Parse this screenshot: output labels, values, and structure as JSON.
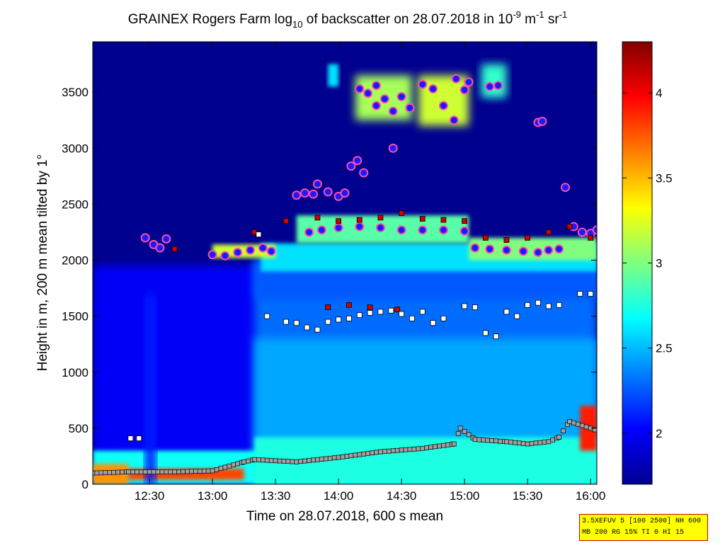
{
  "chart_data": {
    "type": "heatmap",
    "title": {
      "prefix": "GRAINEX Rogers Farm log",
      "log_sub": "10",
      "middle": " of backscatter on 28.07.2018 in 10",
      "exp1": "-9",
      "unit_m": " m",
      "exp2": "-1",
      "unit_sr": " sr",
      "exp3": "-1"
    },
    "xlabel": "Time on 28.07.2018, 600 s mean",
    "ylabel": "Height in m, 200 m mean tilted by 1°",
    "x_ticks": [
      "12:30",
      "13:00",
      "13:30",
      "14:00",
      "14:30",
      "15:00",
      "15:30",
      "16:00"
    ],
    "y_ticks": [
      "0",
      "500",
      "1000",
      "1500",
      "2000",
      "2500",
      "3000",
      "3500"
    ],
    "x_range": [
      "12:03",
      "16:03"
    ],
    "y_range": [
      0,
      3950
    ],
    "colorbar_ticks": [
      "2",
      "2.5",
      "3",
      "3.5",
      "4"
    ],
    "colorbar_range": [
      1.7,
      4.3
    ],
    "colormap": [
      "#00008f",
      "#0000ff",
      "#00ffff",
      "#ffff00",
      "#ff0000",
      "#800000"
    ],
    "info_box": [
      "3.5XEFUV 5 [100 2500] NH 600",
      "MB 200 RG 15% TI 0 HI 15"
    ],
    "cloud_layers": [
      {
        "x": [
          "12:28",
          "12:32",
          "12:35",
          "12:38"
        ],
        "y": [
          2200,
          2140,
          2110,
          2190
        ]
      },
      {
        "x": [
          "13:00",
          "13:06",
          "13:12",
          "13:18",
          "13:24",
          "13:28"
        ],
        "y": [
          2050,
          2040,
          2070,
          2090,
          2110,
          2080
        ]
      },
      {
        "x": [
          "13:40",
          "13:44",
          "13:48"
        ],
        "y": [
          2580,
          2600,
          2590
        ]
      },
      {
        "x": [
          "13:50",
          "13:55",
          "14:00",
          "14:03"
        ],
        "y": [
          2680,
          2610,
          2570,
          2600
        ]
      },
      {
        "x": [
          "14:06",
          "14:09",
          "14:12"
        ],
        "y": [
          2840,
          2890,
          2780
        ]
      },
      {
        "x": [
          "14:10",
          "14:14",
          "14:18"
        ],
        "y": [
          3530,
          3490,
          3560
        ]
      },
      {
        "x": [
          "14:18",
          "14:22",
          "14:26"
        ],
        "y": [
          3380,
          3440,
          3330
        ]
      },
      {
        "x": [
          "14:26",
          "14:30",
          "14:34"
        ],
        "y": [
          3000,
          3460,
          3360
        ]
      },
      {
        "x": [
          "14:40",
          "14:45",
          "14:50",
          "14:55"
        ],
        "y": [
          3570,
          3530,
          3380,
          3250
        ]
      },
      {
        "x": [
          "14:56",
          "15:00",
          "15:02"
        ],
        "y": [
          3620,
          3520,
          3590
        ]
      },
      {
        "x": [
          "15:12",
          "15:16"
        ],
        "y": [
          3550,
          3560
        ]
      },
      {
        "x": [
          "15:35",
          "15:37"
        ],
        "y": [
          3230,
          3240
        ]
      },
      {
        "x": [
          "13:46",
          "13:52",
          "14:00",
          "14:10",
          "14:20",
          "14:30",
          "14:40",
          "14:50",
          "15:00"
        ],
        "y": [
          2250,
          2270,
          2290,
          2300,
          2290,
          2270,
          2270,
          2270,
          2260
        ]
      },
      {
        "x": [
          "15:05",
          "15:12",
          "15:20",
          "15:28",
          "15:35",
          "15:40",
          "15:45"
        ],
        "y": [
          2110,
          2100,
          2090,
          2080,
          2070,
          2090,
          2100
        ]
      },
      {
        "x": [
          "15:48",
          "15:52",
          "15:56",
          "16:00",
          "16:03"
        ],
        "y": [
          2650,
          2300,
          2250,
          2240,
          2270
        ]
      }
    ],
    "red_markers": {
      "x": [
        "12:42",
        "13:20",
        "13:35",
        "13:50",
        "14:00",
        "14:10",
        "14:20",
        "14:30",
        "14:40",
        "14:50",
        "15:00",
        "15:10",
        "15:20",
        "15:30",
        "15:40",
        "15:50",
        "16:00",
        "13:55",
        "14:05",
        "14:15",
        "14:28"
      ],
      "y": [
        2100,
        2250,
        2350,
        2380,
        2350,
        2360,
        2380,
        2420,
        2370,
        2360,
        2350,
        2200,
        2180,
        2200,
        2250,
        2300,
        2200,
        1580,
        1600,
        1580,
        1560
      ]
    },
    "white_markers": {
      "x": [
        "12:21",
        "12:25",
        "13:22",
        "13:26",
        "13:35",
        "13:40",
        "13:45",
        "13:50",
        "13:55",
        "14:00",
        "14:05",
        "14:10",
        "14:15",
        "14:20",
        "14:25",
        "14:30",
        "14:35",
        "14:40",
        "14:45",
        "14:50",
        "15:00",
        "15:05",
        "15:10",
        "15:15",
        "15:20",
        "15:25",
        "15:30",
        "15:35",
        "15:40",
        "15:45",
        "15:55",
        "16:00"
      ],
      "y": [
        410,
        410,
        2230,
        1500,
        1450,
        1440,
        1400,
        1380,
        1450,
        1470,
        1480,
        1510,
        1530,
        1540,
        1550,
        1520,
        1480,
        1540,
        1440,
        1480,
        1590,
        1580,
        1350,
        1320,
        1540,
        1500,
        1600,
        1620,
        1590,
        1600,
        1700,
        1700
      ]
    },
    "boundary_layer": {
      "x": [
        "12:03",
        "12:20",
        "12:40",
        "13:00",
        "13:15",
        "13:20",
        "13:40",
        "14:00",
        "14:20",
        "14:40",
        "14:55",
        "14:58",
        "15:05",
        "15:20",
        "15:30",
        "15:40",
        "15:45",
        "15:50",
        "16:00",
        "16:03"
      ],
      "y": [
        100,
        110,
        110,
        120,
        200,
        220,
        200,
        240,
        290,
        320,
        360,
        500,
        400,
        380,
        360,
        380,
        420,
        560,
        500,
        480
      ]
    }
  }
}
